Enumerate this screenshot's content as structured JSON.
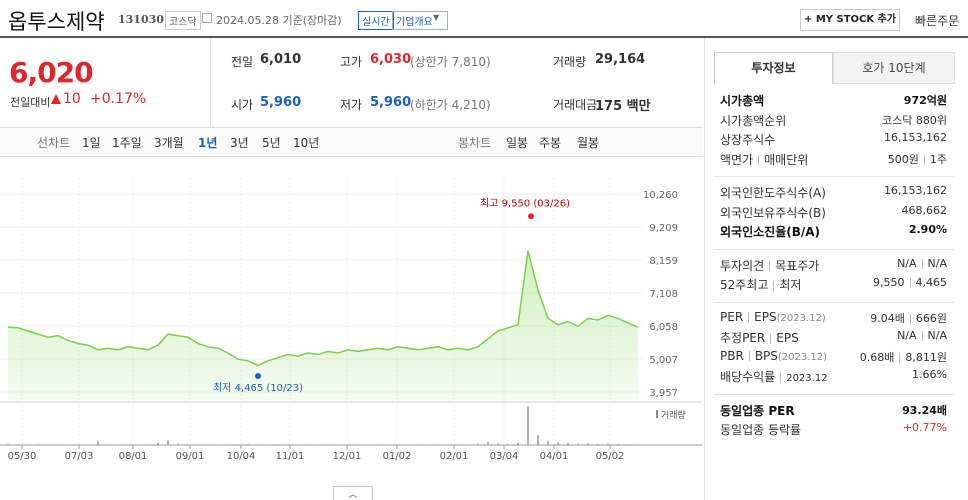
{
  "header": {
    "title": "옵투스제약",
    "code": "131030",
    "market": "코스닥",
    "date": "2024.05.28 기준(장마감)",
    "realtime": "실시간",
    "company_info": "기업개요",
    "my_stock": "+ MY STOCK 추가",
    "quick_order": "빠른주문"
  },
  "price": {
    "current": "6,020",
    "change_label": "전일대비",
    "change": "10",
    "change_rate": "+0.17%"
  },
  "summary": [
    [
      {
        "label": "전일",
        "value": "6,010"
      },
      {
        "label": "고가",
        "value": "6,030",
        "note": "(상한가 7,810)"
      },
      {
        "label": "거래량",
        "value": "29,164"
      }
    ],
    [
      {
        "label": "시가",
        "value": "5,960"
      },
      {
        "label": "저가",
        "value": "5,960",
        "note": "(하한가 4,210)"
      },
      {
        "label": "거래대금",
        "value": "175 백만"
      }
    ]
  ],
  "chart_tabs": {
    "line_label": "선차트",
    "line_periods": [
      "1일",
      "1주일",
      "3개월",
      "1년",
      "3년",
      "5년",
      "10년"
    ],
    "selected_index": 3,
    "candle_label": "봉차트",
    "candle_periods": [
      "일봉",
      "주봉",
      "월봉"
    ]
  },
  "chart": {
    "type": "line",
    "color": "#7ccf4c",
    "values": [
      6020,
      6000,
      5900,
      5800,
      5700,
      5750,
      5600,
      5500,
      5450,
      5300,
      5350,
      5300,
      5400,
      5350,
      5300,
      5450,
      5800,
      5750,
      5700,
      5500,
      5400,
      5350,
      5200,
      5000,
      4950,
      4800,
      4950,
      5050,
      5150,
      5100,
      5200,
      5150,
      5250,
      5200,
      5300,
      5250,
      5300,
      5350,
      5300,
      5400,
      5350,
      5300,
      5350,
      5400,
      5300,
      5350,
      5300,
      5400,
      5650,
      5900,
      6000,
      6100,
      8450,
      7200,
      6300,
      6100,
      6200,
      6050,
      6300,
      6250,
      6400,
      6300,
      6150,
      6020
    ],
    "xlim": [
      0,
      63
    ],
    "xticks": [
      {
        "value": 1.4,
        "label": "05/30"
      },
      {
        "value": 7.1,
        "label": "07/03"
      },
      {
        "value": 12.5,
        "label": "08/01"
      },
      {
        "value": 18.2,
        "label": "09/01"
      },
      {
        "value": 23.3,
        "label": "10/04"
      },
      {
        "value": 28.2,
        "label": "11/01"
      },
      {
        "value": 33.9,
        "label": "12/01"
      },
      {
        "value": 38.9,
        "label": "01/02"
      },
      {
        "value": 44.6,
        "label": "02/01"
      },
      {
        "value": 49.6,
        "label": "03/04"
      },
      {
        "value": 54.6,
        "label": "04/01"
      },
      {
        "value": 60.2,
        "label": "05/02"
      }
    ],
    "ylim": [
      3957,
      10260
    ],
    "yticks": [
      {
        "value": 3957,
        "label": "3,957"
      },
      {
        "value": 5007,
        "label": "5,007"
      },
      {
        "value": 6058,
        "label": "6,058"
      },
      {
        "value": 7108,
        "label": "7,108"
      },
      {
        "value": 8159,
        "label": "8,159"
      },
      {
        "value": 9209,
        "label": "9,209"
      },
      {
        "value": 10260,
        "label": "10,260"
      }
    ],
    "high": {
      "label": "최고 9,550 (03/26)",
      "value": 9550,
      "x": 52.3
    },
    "low": {
      "label": "최저 4,465 (10/23)",
      "value": 4465,
      "x": 25
    },
    "volume": {
      "label": "거래량",
      "ylim": [
        0,
        1300000
      ],
      "values": [
        30000,
        25000,
        20000,
        22000,
        18000,
        20000,
        15000,
        18000,
        15000,
        140000,
        20000,
        15000,
        18000,
        15000,
        20000,
        60000,
        150000,
        40000,
        25000,
        20000,
        18000,
        15000,
        20000,
        25000,
        30000,
        20000,
        15000,
        25000,
        20000,
        15000,
        20000,
        15000,
        18000,
        15000,
        20000,
        18000,
        15000,
        20000,
        15000,
        18000,
        15000,
        20000,
        15000,
        18000,
        15000,
        20000,
        15000,
        40000,
        90000,
        50000,
        30000,
        60000,
        1200000,
        300000,
        120000,
        80000,
        60000,
        40000,
        50000,
        30000,
        40000,
        30000,
        25000,
        20000
      ]
    }
  },
  "invest_info": {
    "tabs": [
      "투자정보",
      "호가 10단계"
    ],
    "groups": [
      [
        {
          "labels": [
            "시가총액"
          ],
          "values": [
            "972억원"
          ],
          "bold": true
        },
        {
          "labels": [
            "시가총액순위"
          ],
          "values": [
            "코스닥 880위"
          ]
        },
        {
          "labels": [
            "상장주식수"
          ],
          "values": [
            "16,153,162"
          ]
        },
        {
          "labels": [
            "액면가",
            "매매단위"
          ],
          "values": [
            "500원",
            "1주"
          ]
        }
      ],
      [
        {
          "labels": [
            "외국인한도주식수(A)"
          ],
          "values": [
            "16,153,162"
          ]
        },
        {
          "labels": [
            "외국인보유주식수(B)"
          ],
          "values": [
            "468,662"
          ]
        },
        {
          "labels": [
            "외국인소진율(B/A)"
          ],
          "values": [
            "2.90%"
          ],
          "bold": true
        }
      ],
      [
        {
          "labels": [
            "투자의견",
            "목표주가"
          ],
          "values": [
            "N/A",
            "N/A"
          ]
        },
        {
          "labels": [
            "52주최고",
            "최저"
          ],
          "values": [
            "9,550",
            "4,465"
          ]
        }
      ],
      [
        {
          "labels": [
            "PER",
            "EPS"
          ],
          "sub": "(2023.12)",
          "values": [
            "9.04배",
            "666원"
          ]
        },
        {
          "labels": [
            "추정PER",
            "EPS"
          ],
          "values": [
            "N/A",
            "N/A"
          ]
        },
        {
          "labels": [
            "PBR",
            "BPS"
          ],
          "sub": "(2023.12)",
          "values": [
            "0.68배",
            "8,811원"
          ]
        },
        {
          "labels": [
            "배당수익률",
            "2023.12"
          ],
          "values": [
            "1.66%"
          ]
        }
      ],
      [
        {
          "labels": [
            "동일업종 PER"
          ],
          "values": [
            "93.24배"
          ],
          "bold": true
        },
        {
          "labels": [
            "동일업종 등락률"
          ],
          "values": [
            "+0.77%"
          ],
          "red": true
        }
      ]
    ]
  }
}
